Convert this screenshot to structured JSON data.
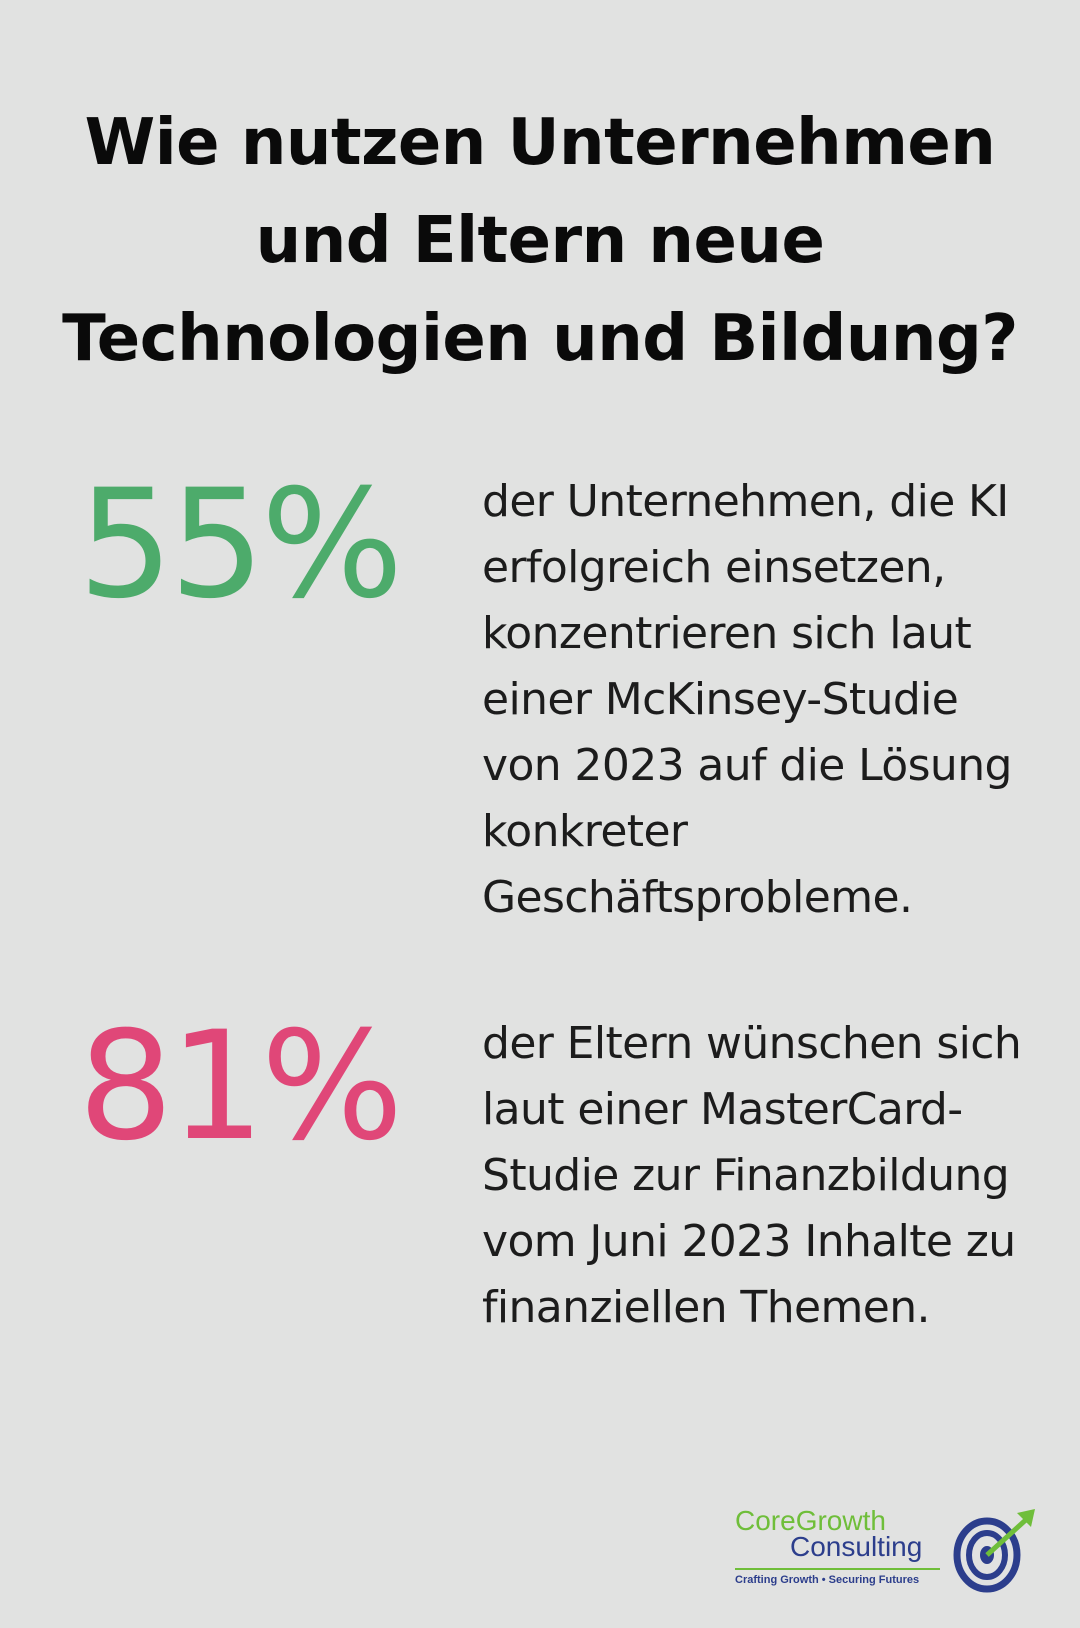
{
  "header": {
    "title": "Wie nutzen Unternehmen und Eltern neue Technologien und Bildung?"
  },
  "stats": [
    {
      "value": "55%",
      "color": "#4dab6b",
      "text": "der Unternehmen, die KI erfolgreich einsetzen, konzentrieren sich laut einer McKinsey-Studie von 2023 auf die Lösung konkreter Geschäftsprobleme."
    },
    {
      "value": "81%",
      "color": "#e04778",
      "text": "der Eltern wünschen sich laut einer MasterCard-Studie zur Finanzbildung vom Juni 2023 Inhalte zu finanziellen Themen."
    }
  ],
  "logo": {
    "name_part1": "CoreGrowth",
    "name_part2": "Consulting",
    "tagline": "Crafting Growth • Securing Futures",
    "icon": "target-arrow-icon",
    "colors": {
      "green": "#6fbe3a",
      "blue": "#2c3e8c"
    }
  }
}
